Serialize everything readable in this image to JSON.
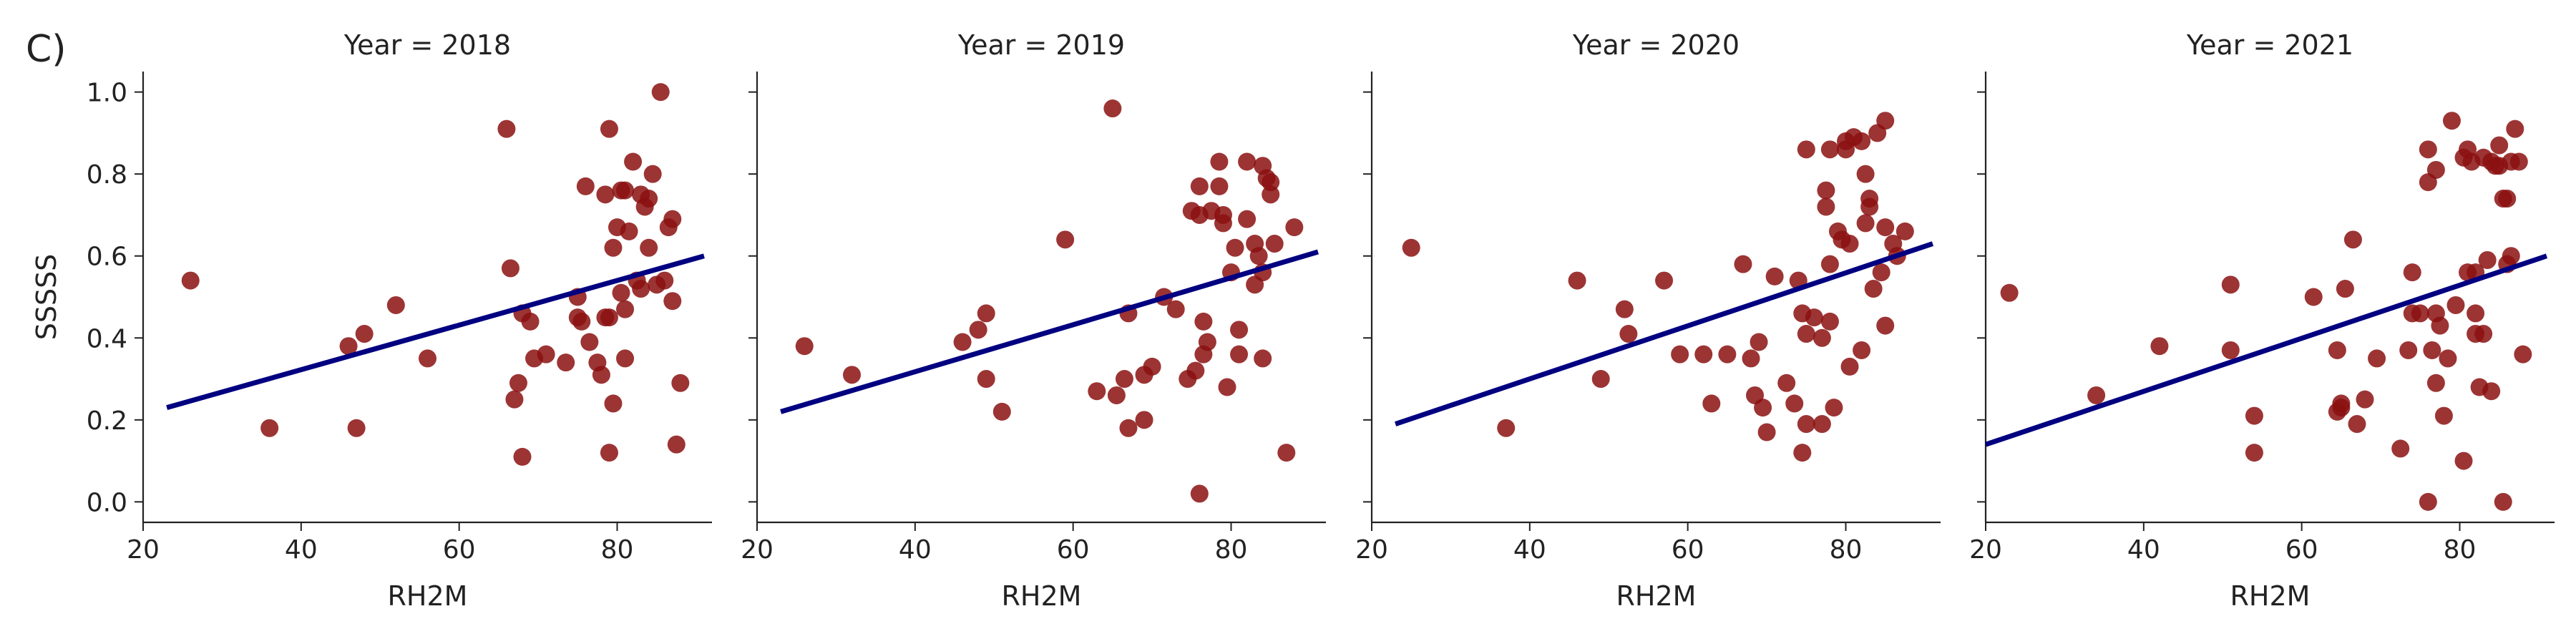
{
  "panel_label": "C)",
  "ylabel": "SSSSS",
  "colors": {
    "points": "#8b1010",
    "regression_line": "#000080",
    "axis": "#222222"
  },
  "chart_data": [
    {
      "type": "scatter",
      "title": "Year = 2018",
      "xlabel": "RH2M",
      "ylabel": "SSSSS",
      "xlim": [
        20,
        92
      ],
      "ylim": [
        -0.05,
        1.05
      ],
      "xticks": [
        20,
        40,
        60,
        80
      ],
      "yticks": [
        0.0,
        0.2,
        0.4,
        0.6,
        0.8,
        1.0
      ],
      "grid": false,
      "regression_line": {
        "x": [
          23,
          91
        ],
        "y": [
          0.23,
          0.6
        ]
      },
      "points": [
        [
          26,
          0.54
        ],
        [
          36,
          0.18
        ],
        [
          46,
          0.38
        ],
        [
          47,
          0.18
        ],
        [
          48,
          0.41
        ],
        [
          52,
          0.48
        ],
        [
          56,
          0.35
        ],
        [
          66,
          0.91
        ],
        [
          66.5,
          0.57
        ],
        [
          67,
          0.25
        ],
        [
          67.5,
          0.29
        ],
        [
          68,
          0.11
        ],
        [
          68,
          0.46
        ],
        [
          69,
          0.44
        ],
        [
          69.5,
          0.35
        ],
        [
          71,
          0.36
        ],
        [
          73.5,
          0.34
        ],
        [
          75,
          0.5
        ],
        [
          75,
          0.45
        ],
        [
          75.5,
          0.44
        ],
        [
          76,
          0.77
        ],
        [
          76.5,
          0.39
        ],
        [
          77.5,
          0.34
        ],
        [
          78,
          0.31
        ],
        [
          78.5,
          0.75
        ],
        [
          78.5,
          0.45
        ],
        [
          79,
          0.91
        ],
        [
          79,
          0.12
        ],
        [
          79,
          0.45
        ],
        [
          79.5,
          0.62
        ],
        [
          79.5,
          0.24
        ],
        [
          80,
          0.67
        ],
        [
          80.5,
          0.76
        ],
        [
          80.5,
          0.51
        ],
        [
          81,
          0.35
        ],
        [
          81,
          0.76
        ],
        [
          81,
          0.47
        ],
        [
          81.5,
          0.66
        ],
        [
          82,
          0.83
        ],
        [
          82.5,
          0.54
        ],
        [
          83,
          0.52
        ],
        [
          83,
          0.75
        ],
        [
          83.5,
          0.72
        ],
        [
          84,
          0.74
        ],
        [
          84,
          0.62
        ],
        [
          84.5,
          0.8
        ],
        [
          85,
          0.53
        ],
        [
          85.5,
          1.0
        ],
        [
          86,
          0.54
        ],
        [
          86.5,
          0.67
        ],
        [
          87,
          0.69
        ],
        [
          87,
          0.49
        ],
        [
          87.5,
          0.14
        ],
        [
          88,
          0.29
        ]
      ]
    },
    {
      "type": "scatter",
      "title": "Year = 2019",
      "xlabel": "RH2M",
      "ylabel": "",
      "xlim": [
        20,
        92
      ],
      "ylim": [
        -0.05,
        1.05
      ],
      "xticks": [
        20,
        40,
        60,
        80
      ],
      "yticks": [
        0.0,
        0.2,
        0.4,
        0.6,
        0.8,
        1.0
      ],
      "grid": false,
      "regression_line": {
        "x": [
          23,
          91
        ],
        "y": [
          0.22,
          0.61
        ]
      },
      "points": [
        [
          26,
          0.38
        ],
        [
          32,
          0.31
        ],
        [
          46,
          0.39
        ],
        [
          48,
          0.42
        ],
        [
          49,
          0.46
        ],
        [
          49,
          0.3
        ],
        [
          51,
          0.22
        ],
        [
          59,
          0.64
        ],
        [
          63,
          0.27
        ],
        [
          65,
          0.96
        ],
        [
          65.5,
          0.26
        ],
        [
          66.5,
          0.3
        ],
        [
          67,
          0.18
        ],
        [
          67,
          0.46
        ],
        [
          69,
          0.2
        ],
        [
          69,
          0.31
        ],
        [
          70,
          0.33
        ],
        [
          71.5,
          0.5
        ],
        [
          73,
          0.47
        ],
        [
          74.5,
          0.3
        ],
        [
          75,
          0.71
        ],
        [
          75.5,
          0.32
        ],
        [
          76,
          0.77
        ],
        [
          76,
          0.7
        ],
        [
          76,
          0.02
        ],
        [
          76.5,
          0.44
        ],
        [
          76.5,
          0.36
        ],
        [
          77,
          0.39
        ],
        [
          77.5,
          0.71
        ],
        [
          78.5,
          0.83
        ],
        [
          78.5,
          0.77
        ],
        [
          79,
          0.7
        ],
        [
          79,
          0.68
        ],
        [
          79.5,
          0.28
        ],
        [
          80,
          0.56
        ],
        [
          80.5,
          0.62
        ],
        [
          81,
          0.42
        ],
        [
          81,
          0.36
        ],
        [
          82,
          0.69
        ],
        [
          82,
          0.83
        ],
        [
          83,
          0.63
        ],
        [
          83,
          0.53
        ],
        [
          83.5,
          0.6
        ],
        [
          84,
          0.82
        ],
        [
          84,
          0.56
        ],
        [
          84,
          0.35
        ],
        [
          84.5,
          0.79
        ],
        [
          85,
          0.75
        ],
        [
          85,
          0.78
        ],
        [
          85.5,
          0.63
        ],
        [
          87,
          0.12
        ],
        [
          88,
          0.67
        ]
      ]
    },
    {
      "type": "scatter",
      "title": "Year = 2020",
      "xlabel": "RH2M",
      "ylabel": "",
      "xlim": [
        20,
        92
      ],
      "ylim": [
        -0.05,
        1.05
      ],
      "xticks": [
        20,
        40,
        60,
        80
      ],
      "yticks": [
        0.0,
        0.2,
        0.4,
        0.6,
        0.8,
        1.0
      ],
      "grid": false,
      "regression_line": {
        "x": [
          23,
          91
        ],
        "y": [
          0.19,
          0.63
        ]
      },
      "points": [
        [
          25,
          0.62
        ],
        [
          37,
          0.18
        ],
        [
          46,
          0.54
        ],
        [
          49,
          0.3
        ],
        [
          52,
          0.47
        ],
        [
          52.5,
          0.41
        ],
        [
          57,
          0.54
        ],
        [
          59,
          0.36
        ],
        [
          62,
          0.36
        ],
        [
          63,
          0.24
        ],
        [
          65,
          0.36
        ],
        [
          67,
          0.58
        ],
        [
          68,
          0.35
        ],
        [
          68.5,
          0.26
        ],
        [
          69,
          0.39
        ],
        [
          69.5,
          0.23
        ],
        [
          70,
          0.17
        ],
        [
          71,
          0.55
        ],
        [
          72.5,
          0.29
        ],
        [
          73.5,
          0.24
        ],
        [
          74,
          0.54
        ],
        [
          74.5,
          0.46
        ],
        [
          74.5,
          0.12
        ],
        [
          75,
          0.19
        ],
        [
          75,
          0.86
        ],
        [
          75,
          0.41
        ],
        [
          76,
          0.45
        ],
        [
          77,
          0.4
        ],
        [
          77,
          0.19
        ],
        [
          77.5,
          0.76
        ],
        [
          77.5,
          0.72
        ],
        [
          78,
          0.86
        ],
        [
          78,
          0.58
        ],
        [
          78,
          0.44
        ],
        [
          78.5,
          0.23
        ],
        [
          79,
          0.66
        ],
        [
          79.5,
          0.64
        ],
        [
          80,
          0.88
        ],
        [
          80,
          0.86
        ],
        [
          80.5,
          0.63
        ],
        [
          80.5,
          0.33
        ],
        [
          81,
          0.89
        ],
        [
          82,
          0.88
        ],
        [
          82,
          0.37
        ],
        [
          82.5,
          0.68
        ],
        [
          82.5,
          0.8
        ],
        [
          83,
          0.74
        ],
        [
          83,
          0.72
        ],
        [
          83.5,
          0.52
        ],
        [
          84,
          0.9
        ],
        [
          84.5,
          0.56
        ],
        [
          85,
          0.93
        ],
        [
          85,
          0.67
        ],
        [
          85,
          0.43
        ],
        [
          86,
          0.63
        ],
        [
          86.5,
          0.6
        ],
        [
          87.5,
          0.66
        ]
      ]
    },
    {
      "type": "scatter",
      "title": "Year = 2021",
      "xlabel": "RH2M",
      "ylabel": "",
      "xlim": [
        20,
        92
      ],
      "ylim": [
        -0.05,
        1.05
      ],
      "xticks": [
        20,
        40,
        60,
        80
      ],
      "yticks": [
        0.0,
        0.2,
        0.4,
        0.6,
        0.8,
        1.0
      ],
      "grid": false,
      "regression_line": {
        "x": [
          20,
          91
        ],
        "y": [
          0.14,
          0.6
        ]
      },
      "points": [
        [
          23,
          0.51
        ],
        [
          34,
          0.26
        ],
        [
          42,
          0.38
        ],
        [
          51,
          0.53
        ],
        [
          51,
          0.37
        ],
        [
          54,
          0.21
        ],
        [
          54,
          0.12
        ],
        [
          61.5,
          0.5
        ],
        [
          64.5,
          0.37
        ],
        [
          64.5,
          0.22
        ],
        [
          65,
          0.24
        ],
        [
          65,
          0.23
        ],
        [
          65.5,
          0.52
        ],
        [
          66.5,
          0.64
        ],
        [
          67,
          0.19
        ],
        [
          68,
          0.25
        ],
        [
          69.5,
          0.35
        ],
        [
          72.5,
          0.13
        ],
        [
          73.5,
          0.37
        ],
        [
          74,
          0.56
        ],
        [
          74,
          0.46
        ],
        [
          75,
          0.46
        ],
        [
          76,
          0.0
        ],
        [
          76,
          0.78
        ],
        [
          76,
          0.86
        ],
        [
          76.5,
          0.37
        ],
        [
          77,
          0.81
        ],
        [
          77,
          0.46
        ],
        [
          77,
          0.29
        ],
        [
          77.5,
          0.43
        ],
        [
          78,
          0.21
        ],
        [
          78.5,
          0.35
        ],
        [
          79,
          0.93
        ],
        [
          79.5,
          0.48
        ],
        [
          80.5,
          0.1
        ],
        [
          80.5,
          0.84
        ],
        [
          81,
          0.86
        ],
        [
          81,
          0.56
        ],
        [
          81.5,
          0.83
        ],
        [
          82,
          0.56
        ],
        [
          82,
          0.46
        ],
        [
          82,
          0.41
        ],
        [
          82.5,
          0.28
        ],
        [
          83,
          0.84
        ],
        [
          83,
          0.41
        ],
        [
          83.5,
          0.59
        ],
        [
          84,
          0.83
        ],
        [
          84,
          0.27
        ],
        [
          84.5,
          0.82
        ],
        [
          85,
          0.87
        ],
        [
          85,
          0.82
        ],
        [
          85.5,
          0.0
        ],
        [
          85.5,
          0.74
        ],
        [
          86,
          0.58
        ],
        [
          86,
          0.74
        ],
        [
          86.5,
          0.83
        ],
        [
          86.5,
          0.6
        ],
        [
          87,
          0.91
        ],
        [
          87.5,
          0.83
        ],
        [
          88,
          0.36
        ]
      ]
    }
  ]
}
